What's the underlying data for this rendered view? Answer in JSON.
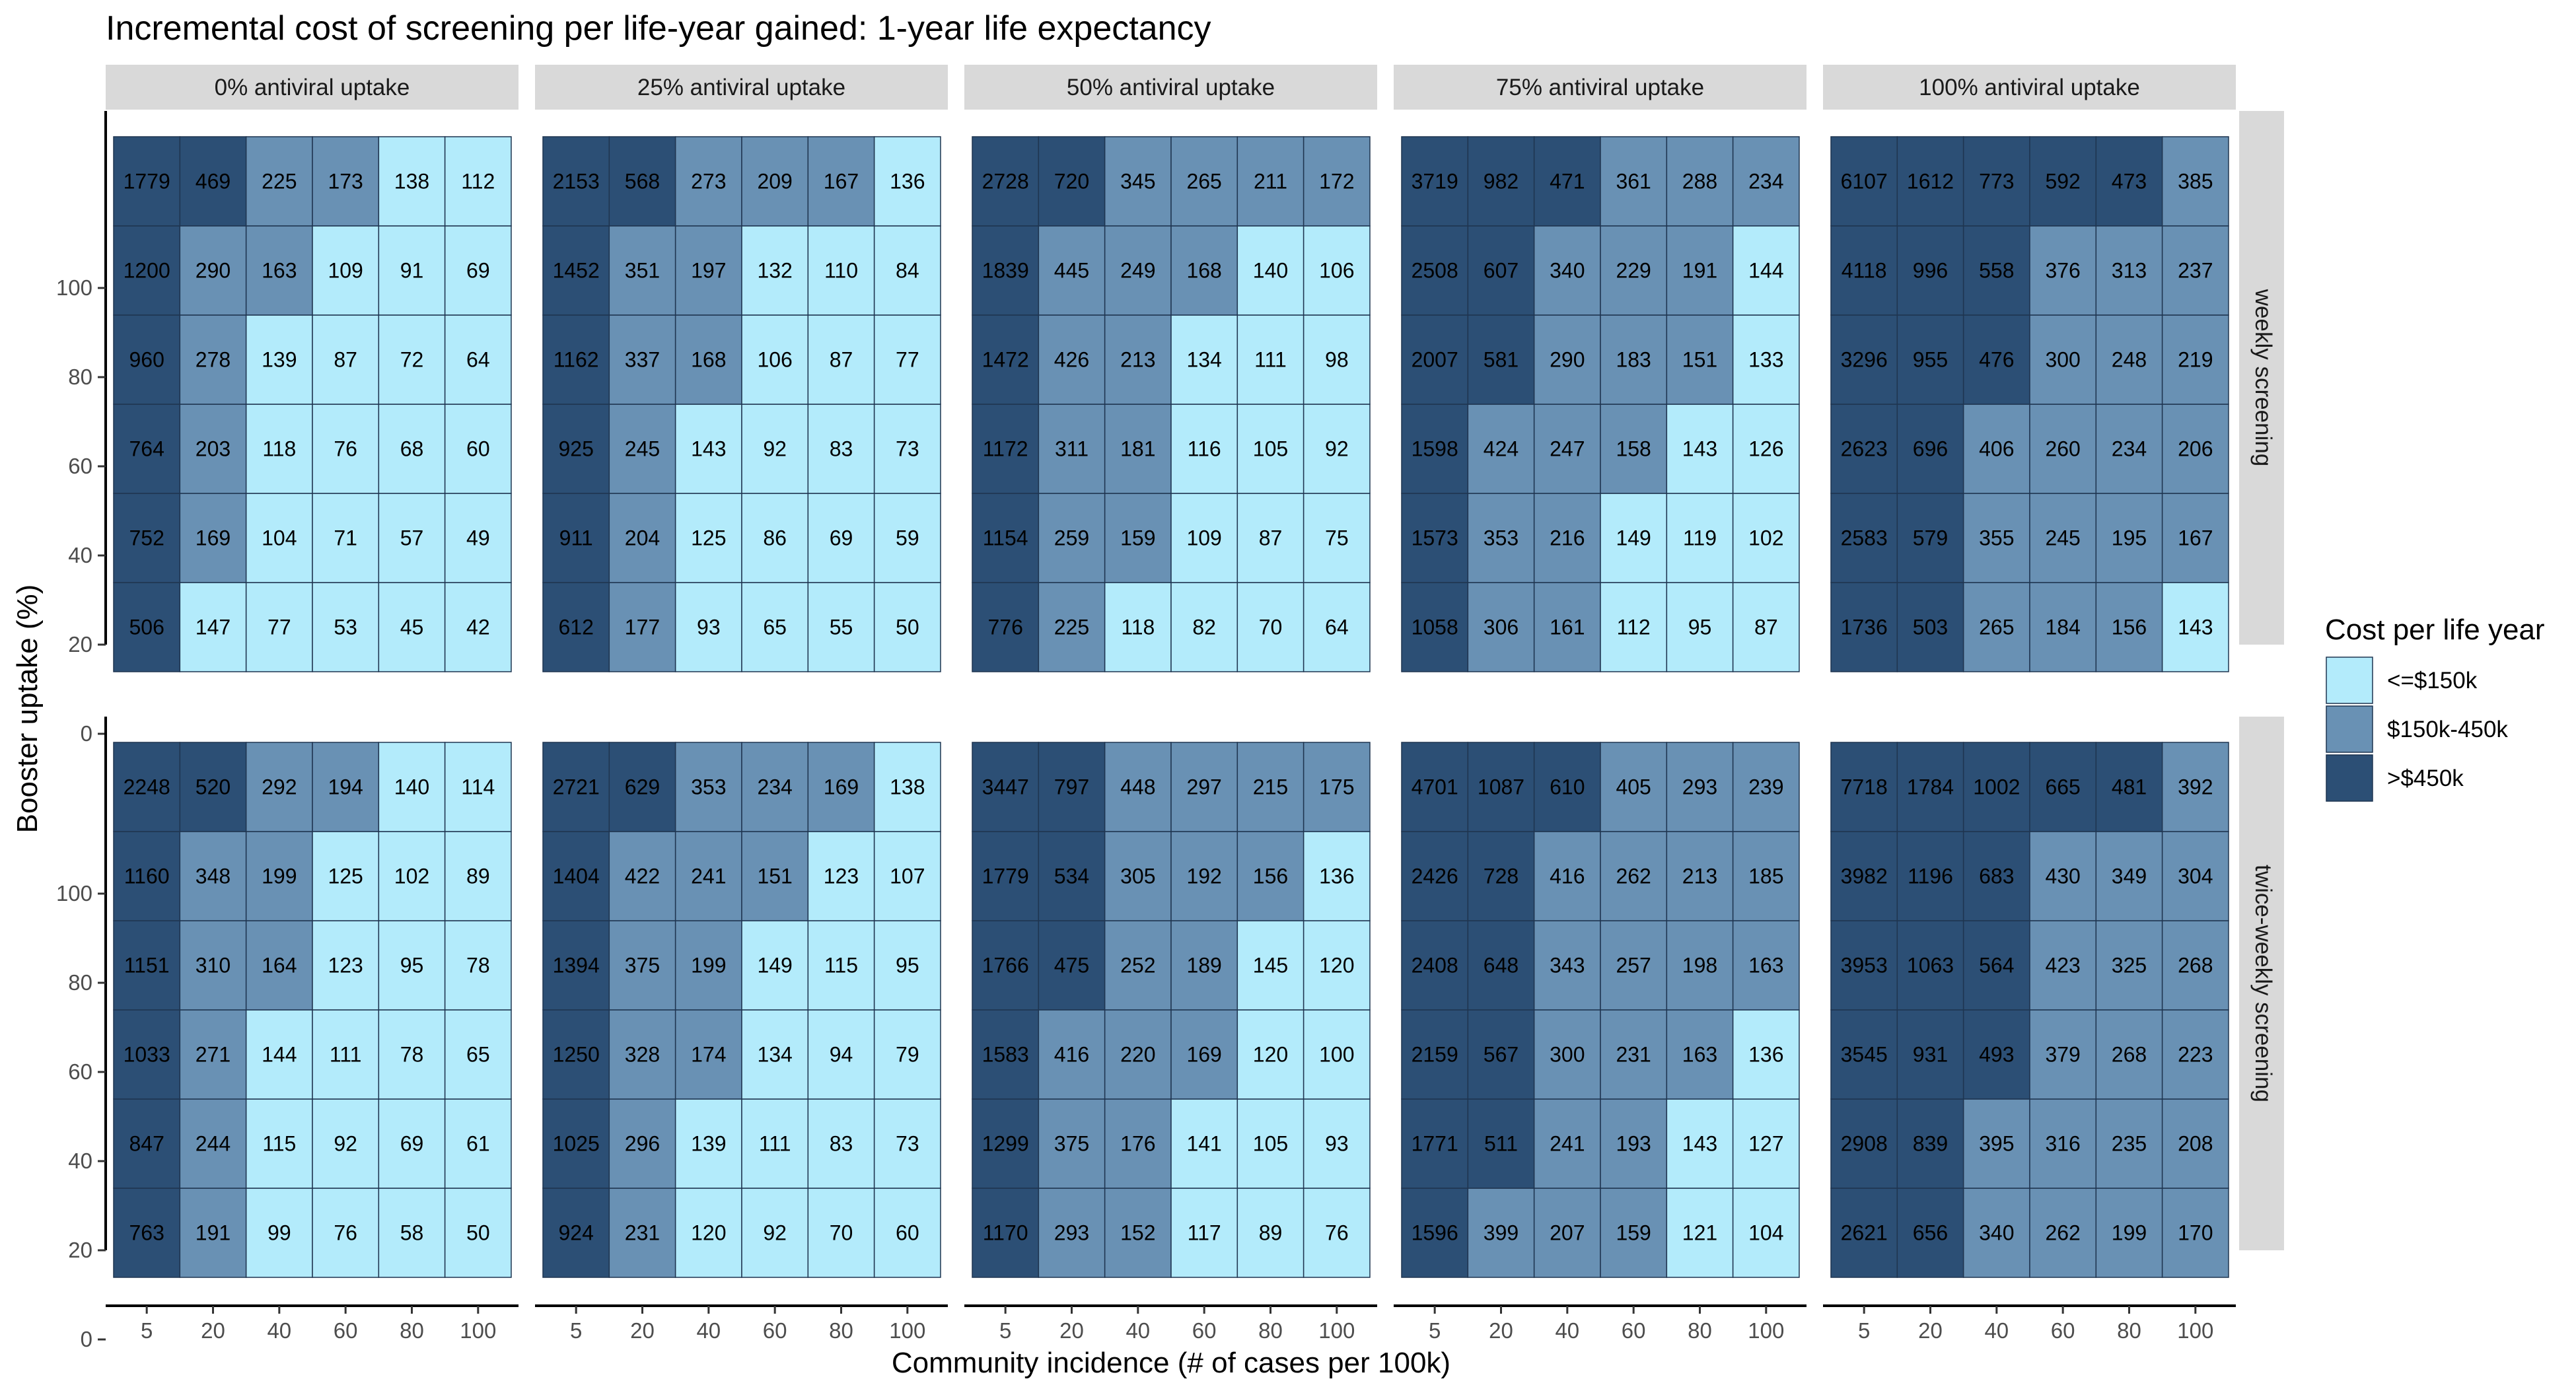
{
  "chart_data": {
    "type": "heatmap",
    "title": "Incremental cost of screening per life-year gained: 1-year life expectancy",
    "xlabel": "Community incidence (# of cases per 100k)",
    "ylabel": "Booster uptake (%)",
    "x_ticks": [
      "5",
      "20",
      "40",
      "60",
      "80",
      "100"
    ],
    "y_ticks": [
      "0",
      "20",
      "40",
      "60",
      "80",
      "100"
    ],
    "column_facets": [
      "0% antiviral uptake",
      "25% antiviral uptake",
      "50% antiviral uptake",
      "75% antiviral uptake",
      "100% antiviral uptake"
    ],
    "row_facets": [
      "weekly screening",
      "twice-weekly screening"
    ],
    "legend": {
      "title": "Cost per life year",
      "position": "right",
      "items": [
        {
          "label": "<=$150k",
          "color": "#b3ebfb"
        },
        {
          "label": "$150k-450k",
          "color": "#6991b4"
        },
        {
          "label": ">$450k",
          "color": "#2c4f75"
        }
      ]
    },
    "category_thresholds": [
      150,
      450
    ],
    "grid": false,
    "panels": [
      [
        [
          [
            506,
            147,
            77,
            53,
            45,
            42
          ],
          [
            752,
            169,
            104,
            71,
            57,
            49
          ],
          [
            764,
            203,
            118,
            76,
            68,
            60
          ],
          [
            960,
            278,
            139,
            87,
            72,
            64
          ],
          [
            1200,
            290,
            163,
            109,
            91,
            69
          ],
          [
            1779,
            469,
            225,
            173,
            138,
            112
          ]
        ],
        [
          [
            612,
            177,
            93,
            65,
            55,
            50
          ],
          [
            911,
            204,
            125,
            86,
            69,
            59
          ],
          [
            925,
            245,
            143,
            92,
            83,
            73
          ],
          [
            1162,
            337,
            168,
            106,
            87,
            77
          ],
          [
            1452,
            351,
            197,
            132,
            110,
            84
          ],
          [
            2153,
            568,
            273,
            209,
            167,
            136
          ]
        ],
        [
          [
            776,
            225,
            118,
            82,
            70,
            64
          ],
          [
            1154,
            259,
            159,
            109,
            87,
            75
          ],
          [
            1172,
            311,
            181,
            116,
            105,
            92
          ],
          [
            1472,
            426,
            213,
            134,
            111,
            98
          ],
          [
            1839,
            445,
            249,
            168,
            140,
            106
          ],
          [
            2728,
            720,
            345,
            265,
            211,
            172
          ]
        ],
        [
          [
            1058,
            306,
            161,
            112,
            95,
            87
          ],
          [
            1573,
            353,
            216,
            149,
            119,
            102
          ],
          [
            1598,
            424,
            247,
            158,
            143,
            126
          ],
          [
            2007,
            581,
            290,
            183,
            151,
            133
          ],
          [
            2508,
            607,
            340,
            229,
            191,
            144
          ],
          [
            3719,
            982,
            471,
            361,
            288,
            234
          ]
        ],
        [
          [
            1736,
            503,
            265,
            184,
            156,
            143
          ],
          [
            2583,
            579,
            355,
            245,
            195,
            167
          ],
          [
            2623,
            696,
            406,
            260,
            234,
            206
          ],
          [
            3296,
            955,
            476,
            300,
            248,
            219
          ],
          [
            4118,
            996,
            558,
            376,
            313,
            237
          ],
          [
            6107,
            1612,
            773,
            592,
            473,
            385
          ]
        ]
      ],
      [
        [
          [
            763,
            191,
            99,
            76,
            58,
            50
          ],
          [
            847,
            244,
            115,
            92,
            69,
            61
          ],
          [
            1033,
            271,
            144,
            111,
            78,
            65
          ],
          [
            1151,
            310,
            164,
            123,
            95,
            78
          ],
          [
            1160,
            348,
            199,
            125,
            102,
            89
          ],
          [
            2248,
            520,
            292,
            194,
            140,
            114
          ]
        ],
        [
          [
            924,
            231,
            120,
            92,
            70,
            60
          ],
          [
            1025,
            296,
            139,
            111,
            83,
            73
          ],
          [
            1250,
            328,
            174,
            134,
            94,
            79
          ],
          [
            1394,
            375,
            199,
            149,
            115,
            95
          ],
          [
            1404,
            422,
            241,
            151,
            123,
            107
          ],
          [
            2721,
            629,
            353,
            234,
            169,
            138
          ]
        ],
        [
          [
            1170,
            293,
            152,
            117,
            89,
            76
          ],
          [
            1299,
            375,
            176,
            141,
            105,
            93
          ],
          [
            1583,
            416,
            220,
            169,
            120,
            100
          ],
          [
            1766,
            475,
            252,
            189,
            145,
            120
          ],
          [
            1779,
            534,
            305,
            192,
            156,
            136
          ],
          [
            3447,
            797,
            448,
            297,
            215,
            175
          ]
        ],
        [
          [
            1596,
            399,
            207,
            159,
            121,
            104
          ],
          [
            1771,
            511,
            241,
            193,
            143,
            127
          ],
          [
            2159,
            567,
            300,
            231,
            163,
            136
          ],
          [
            2408,
            648,
            343,
            257,
            198,
            163
          ],
          [
            2426,
            728,
            416,
            262,
            213,
            185
          ],
          [
            4701,
            1087,
            610,
            405,
            293,
            239
          ]
        ],
        [
          [
            2621,
            656,
            340,
            262,
            199,
            170
          ],
          [
            2908,
            839,
            395,
            316,
            235,
            208
          ],
          [
            3545,
            931,
            493,
            379,
            268,
            223
          ],
          [
            3953,
            1063,
            564,
            423,
            325,
            268
          ],
          [
            3982,
            1196,
            683,
            430,
            349,
            304
          ],
          [
            7718,
            1784,
            1002,
            665,
            481,
            392
          ]
        ]
      ]
    ]
  }
}
